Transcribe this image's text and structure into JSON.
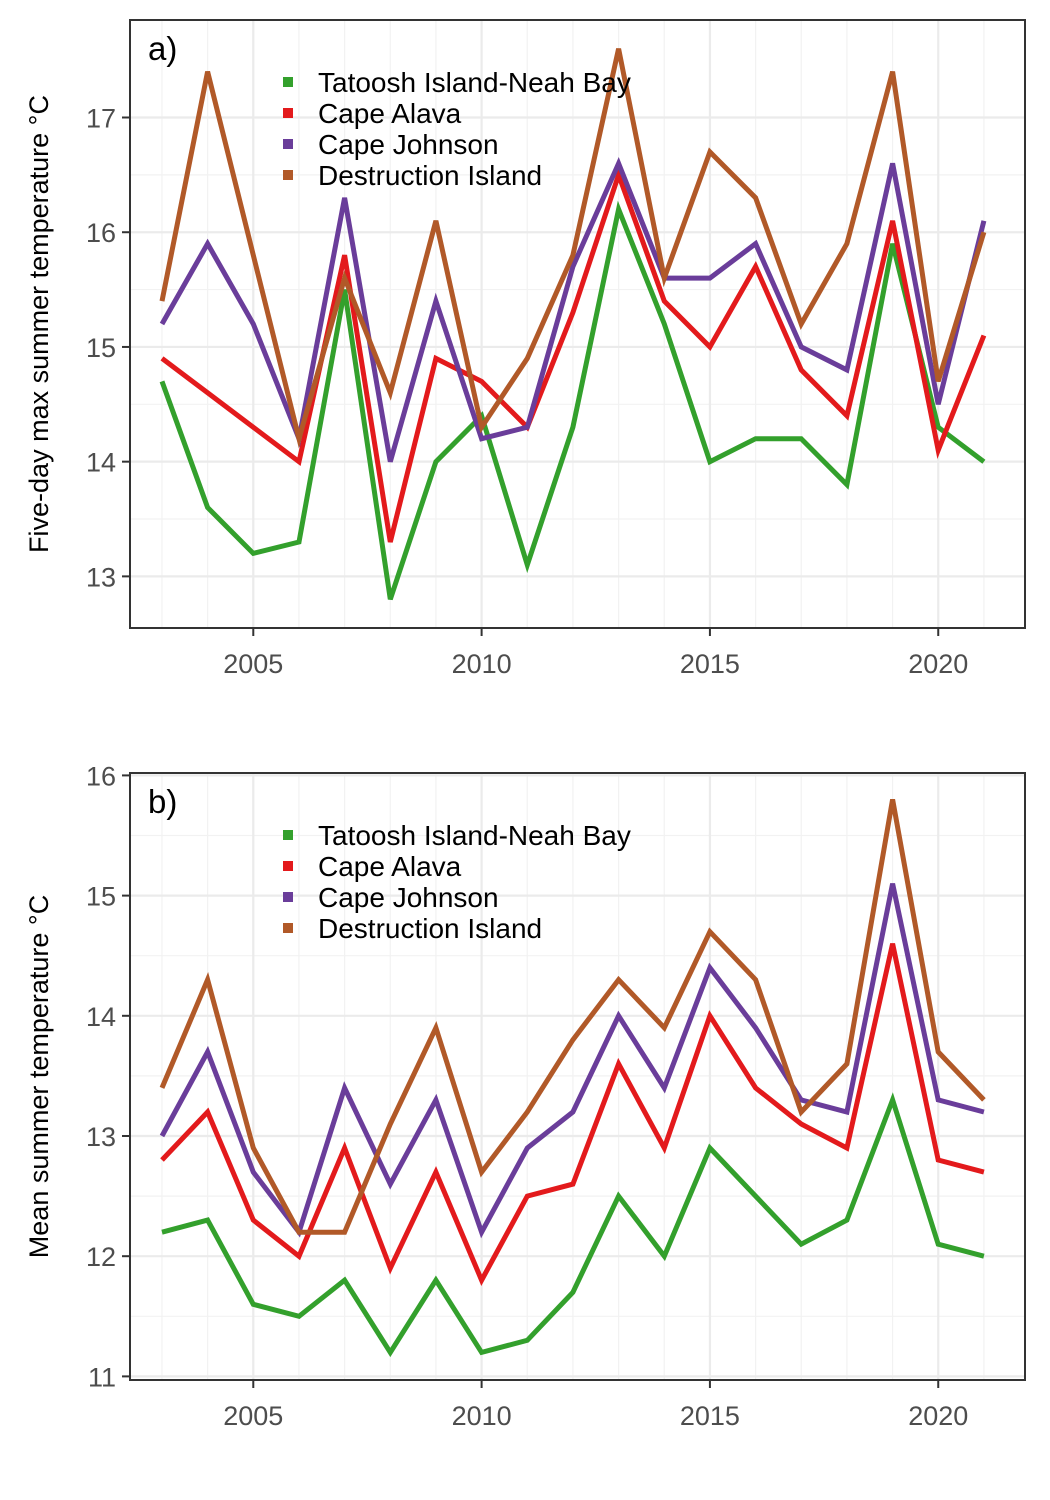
{
  "chart_data": [
    {
      "type": "line",
      "panel_label": "a)",
      "ylabel": "Five-day max summer temperature °C",
      "xlabel": "",
      "xlim": [
        2002.3,
        2021.9
      ],
      "ylim": [
        12.55,
        17.85
      ],
      "x_ticks": [
        2005,
        2010,
        2015,
        2020
      ],
      "y_ticks": [
        13,
        14,
        15,
        16,
        17
      ],
      "grid": true,
      "legend_position": "top-center",
      "x": [
        2003,
        2004,
        2005,
        2006,
        2007,
        2008,
        2009,
        2010,
        2011,
        2012,
        2013,
        2014,
        2015,
        2016,
        2017,
        2018,
        2019,
        2020,
        2021
      ],
      "series": [
        {
          "name": "Tatoosh Island-Neah Bay",
          "color": "#33a02c",
          "values": [
            14.7,
            13.6,
            13.2,
            13.3,
            15.5,
            12.8,
            14.0,
            14.4,
            13.1,
            14.3,
            16.2,
            15.2,
            14.0,
            14.2,
            14.2,
            13.8,
            15.9,
            14.3,
            14.0
          ]
        },
        {
          "name": "Cape Alava",
          "color": "#e31a1c",
          "values": [
            14.9,
            14.6,
            14.3,
            14.0,
            15.8,
            13.3,
            14.9,
            14.7,
            14.3,
            15.3,
            16.5,
            15.4,
            15.0,
            15.7,
            14.8,
            14.4,
            16.1,
            14.1,
            15.1
          ]
        },
        {
          "name": "Cape Johnson",
          "color": "#6a3d9a",
          "values": [
            15.2,
            15.9,
            15.2,
            14.2,
            16.3,
            14.0,
            15.4,
            14.2,
            14.3,
            15.7,
            16.6,
            15.6,
            15.6,
            15.9,
            15.0,
            14.8,
            16.6,
            14.5,
            16.1
          ]
        },
        {
          "name": "Destruction Island",
          "color": "#b15928",
          "values": [
            15.4,
            17.4,
            15.8,
            14.2,
            15.6,
            14.6,
            16.1,
            14.3,
            14.9,
            15.8,
            17.6,
            15.6,
            16.7,
            16.3,
            15.2,
            15.9,
            17.4,
            14.7,
            16.0
          ]
        }
      ]
    },
    {
      "type": "line",
      "panel_label": "b)",
      "ylabel": "Mean summer temperature °C",
      "xlabel": "",
      "xlim": [
        2002.3,
        2021.9
      ],
      "ylim": [
        10.97,
        16.02
      ],
      "x_ticks": [
        2005,
        2010,
        2015,
        2020
      ],
      "y_ticks": [
        11,
        12,
        13,
        14,
        15,
        16
      ],
      "grid": true,
      "legend_position": "top-center",
      "x": [
        2003,
        2004,
        2005,
        2006,
        2007,
        2008,
        2009,
        2010,
        2011,
        2012,
        2013,
        2014,
        2015,
        2016,
        2017,
        2018,
        2019,
        2020,
        2021
      ],
      "series": [
        {
          "name": "Tatoosh Island-Neah Bay",
          "color": "#33a02c",
          "values": [
            12.2,
            12.3,
            11.6,
            11.5,
            11.8,
            11.2,
            11.8,
            11.2,
            11.3,
            11.7,
            12.5,
            12.0,
            12.9,
            12.5,
            12.1,
            12.3,
            13.3,
            12.1,
            12.0
          ]
        },
        {
          "name": "Cape Alava",
          "color": "#e31a1c",
          "values": [
            12.8,
            13.2,
            12.3,
            12.0,
            12.9,
            11.9,
            12.7,
            11.8,
            12.5,
            12.6,
            13.6,
            12.9,
            14.0,
            13.4,
            13.1,
            12.9,
            14.6,
            12.8,
            12.7
          ]
        },
        {
          "name": "Cape Johnson",
          "color": "#6a3d9a",
          "values": [
            13.0,
            13.7,
            12.7,
            12.2,
            13.4,
            12.6,
            13.3,
            12.2,
            12.9,
            13.2,
            14.0,
            13.4,
            14.4,
            13.9,
            13.3,
            13.2,
            15.1,
            13.3,
            13.2
          ]
        },
        {
          "name": "Destruction Island",
          "color": "#b15928",
          "values": [
            13.4,
            14.3,
            12.9,
            12.2,
            12.2,
            13.1,
            13.9,
            12.7,
            13.2,
            13.8,
            14.3,
            13.9,
            14.7,
            14.3,
            13.2,
            13.6,
            15.8,
            13.7,
            13.3
          ]
        }
      ]
    }
  ]
}
